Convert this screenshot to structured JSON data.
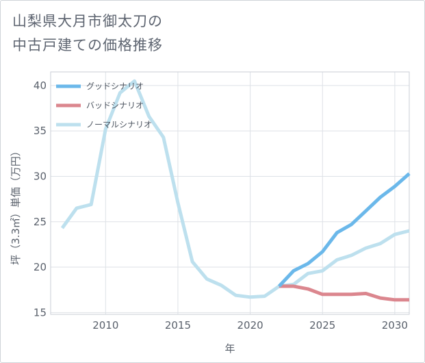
{
  "title_lines": [
    "山梨県大月市御太刀の",
    "中古戸建ての価格推移"
  ],
  "chart_data": {
    "type": "line",
    "title": "山梨県大月市御太刀の中古戸建ての価格推移",
    "xlabel": "年",
    "ylabel": "坪（3.3㎡）単価（万円）",
    "xlim": [
      2006.2,
      2031
    ],
    "ylim": [
      14.8,
      41.5
    ],
    "xticks": [
      2010,
      2015,
      2020,
      2025,
      2030
    ],
    "yticks": [
      15,
      20,
      25,
      30,
      35,
      40
    ],
    "grid": true,
    "legend_position": "top-left",
    "series": [
      {
        "name": "グッドシナリオ",
        "color": "#6bb8ea",
        "x": [
          2022,
          2023,
          2024,
          2025,
          2026,
          2027,
          2028,
          2029,
          2030,
          2031
        ],
        "values": [
          17.9,
          19.6,
          20.4,
          21.7,
          23.8,
          24.7,
          26.2,
          27.7,
          28.9,
          30.3
        ]
      },
      {
        "name": "バッドシナリオ",
        "color": "#db868e",
        "x": [
          2022,
          2023,
          2024,
          2025,
          2026,
          2027,
          2028,
          2029,
          2030,
          2031
        ],
        "values": [
          17.9,
          17.9,
          17.6,
          17.0,
          17.0,
          17.0,
          17.1,
          16.6,
          16.4,
          16.4
        ]
      },
      {
        "name": "ノーマルシナリオ",
        "color": "#bde0ee",
        "x": [
          2007,
          2008,
          2009,
          2010,
          2011,
          2012,
          2013,
          2014,
          2015,
          2016,
          2017,
          2018,
          2019,
          2020,
          2021,
          2022,
          2023,
          2024,
          2025,
          2026,
          2027,
          2028,
          2029,
          2030,
          2031
        ],
        "values": [
          24.3,
          26.5,
          26.9,
          35.2,
          39.2,
          40.5,
          36.6,
          34.3,
          27.1,
          20.6,
          18.7,
          18.0,
          16.9,
          16.7,
          16.8,
          17.9,
          18.1,
          19.3,
          19.6,
          20.8,
          21.3,
          22.1,
          22.6,
          23.6,
          24.0
        ]
      }
    ]
  }
}
